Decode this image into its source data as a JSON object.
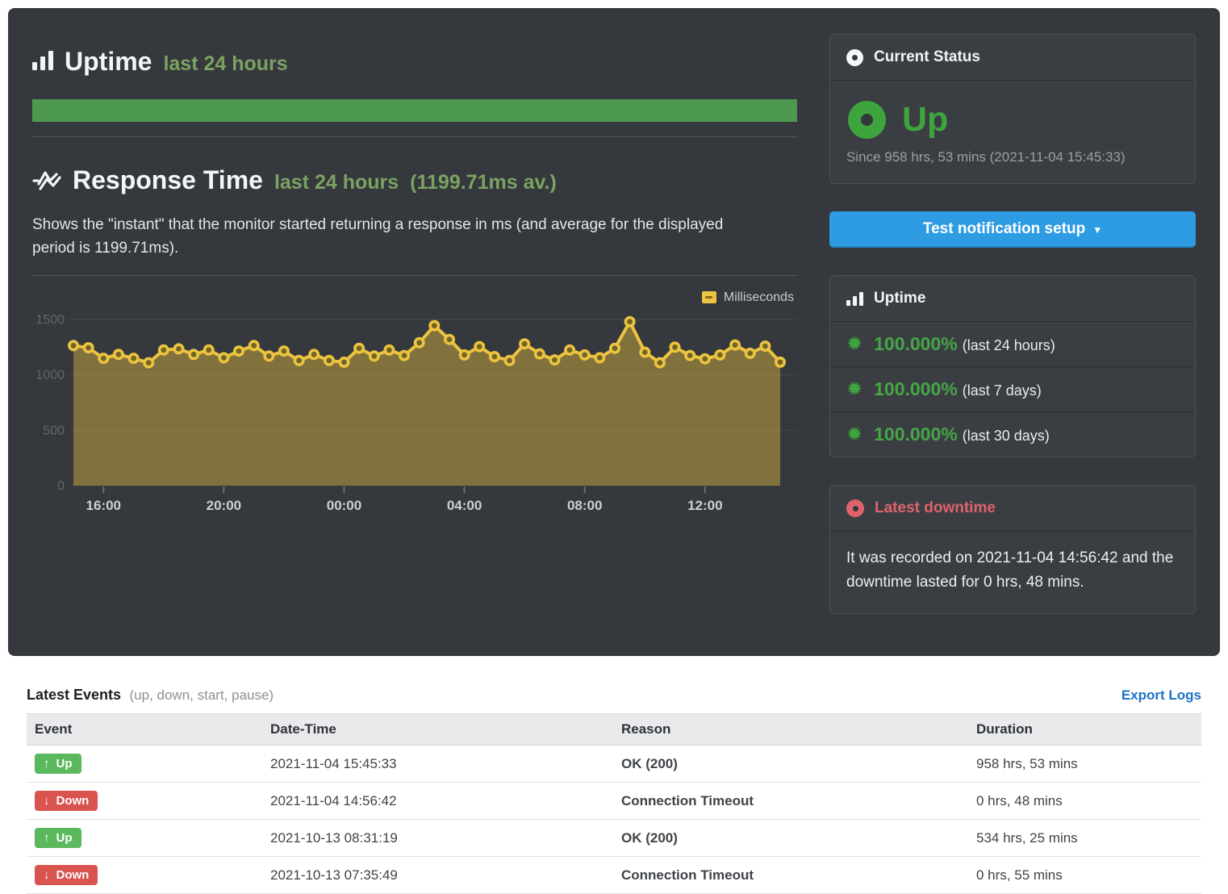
{
  "uptime_section": {
    "title": "Uptime",
    "subtitle": "last 24 hours"
  },
  "response_section": {
    "title": "Response Time",
    "subtitle": "last 24 hours",
    "average_note": "(1199.71ms av.)",
    "description": "Shows the \"instant\" that the monitor started returning a response in ms (and average for the displayed period is 1199.71ms)."
  },
  "chart_data": {
    "type": "area",
    "title": "Response Time last 24 hours",
    "ylabel": "Milliseconds",
    "xlabel": "",
    "ylim": [
      0,
      1500
    ],
    "yticks": [
      0,
      500,
      1000,
      1500
    ],
    "xticks": [
      "16:00",
      "20:00",
      "00:00",
      "04:00",
      "08:00",
      "12:00"
    ],
    "xtick_indices": [
      2,
      10,
      18,
      26,
      34,
      42
    ],
    "grid": true,
    "legend_position": "top-right",
    "x": [
      "15:00",
      "15:30",
      "16:00",
      "16:30",
      "17:00",
      "17:30",
      "18:00",
      "18:30",
      "19:00",
      "19:30",
      "20:00",
      "20:30",
      "21:00",
      "21:30",
      "22:00",
      "22:30",
      "23:00",
      "23:30",
      "00:00",
      "00:30",
      "01:00",
      "01:30",
      "02:00",
      "02:30",
      "03:00",
      "03:30",
      "04:00",
      "04:30",
      "05:00",
      "05:30",
      "06:00",
      "06:30",
      "07:00",
      "07:30",
      "08:00",
      "08:30",
      "09:00",
      "09:30",
      "10:00",
      "10:30",
      "11:00",
      "11:30",
      "12:00",
      "12:30",
      "13:00",
      "13:30",
      "14:00",
      "14:30"
    ],
    "series": [
      {
        "name": "Milliseconds",
        "color": "#ecc440",
        "marker_fill": "#6f6527",
        "values": [
          1265,
          1245,
          1150,
          1185,
          1150,
          1110,
          1225,
          1235,
          1185,
          1225,
          1155,
          1215,
          1265,
          1170,
          1215,
          1130,
          1185,
          1130,
          1115,
          1240,
          1170,
          1225,
          1175,
          1290,
          1445,
          1320,
          1180,
          1255,
          1165,
          1130,
          1280,
          1190,
          1135,
          1225,
          1180,
          1155,
          1240,
          1480,
          1205,
          1110,
          1250,
          1175,
          1145,
          1180,
          1270,
          1195,
          1260,
          1115
        ]
      }
    ]
  },
  "sidebar": {
    "current_status": {
      "title": "Current Status",
      "status": "Up",
      "since": "Since 958 hrs, 53 mins (2021-11-04 15:45:33)"
    },
    "test_notification_button": "Test notification setup",
    "uptime_panel": {
      "title": "Uptime",
      "rows": [
        {
          "value": "100.000%",
          "period": "(last 24 hours)"
        },
        {
          "value": "100.000%",
          "period": "(last 7 days)"
        },
        {
          "value": "100.000%",
          "period": "(last 30 days)"
        }
      ]
    },
    "latest_downtime": {
      "title": "Latest downtime",
      "text": "It was recorded on 2021-11-04 14:56:42 and the downtime lasted for 0 hrs, 48 mins."
    }
  },
  "events": {
    "title": "Latest Events",
    "subtitle": "(up, down, start, pause)",
    "export_label": "Export Logs",
    "columns": [
      "Event",
      "Date-Time",
      "Reason",
      "Duration"
    ],
    "rows": [
      {
        "event": "Up",
        "direction": "up",
        "datetime": "2021-11-04 15:45:33",
        "reason": "OK (200)",
        "reason_type": "ok",
        "duration": "958 hrs, 53 mins"
      },
      {
        "event": "Down",
        "direction": "down",
        "datetime": "2021-11-04 14:56:42",
        "reason": "Connection Timeout",
        "reason_type": "error",
        "duration": "0 hrs, 48 mins"
      },
      {
        "event": "Up",
        "direction": "up",
        "datetime": "2021-10-13 08:31:19",
        "reason": "OK (200)",
        "reason_type": "ok",
        "duration": "534 hrs, 25 mins"
      },
      {
        "event": "Down",
        "direction": "down",
        "datetime": "2021-10-13 07:35:49",
        "reason": "Connection Timeout",
        "reason_type": "error",
        "duration": "0 hrs, 55 mins"
      }
    ]
  },
  "colors": {
    "uptime_bar_green": "#4d9950",
    "status_green": "#3ea43e",
    "percent_green": "#46a546",
    "subtitle_green": "#7ba263",
    "button_blue": "#2e9ce3",
    "link_blue": "#1a71c7",
    "badge_green": "#5cb85c",
    "badge_red": "#d9534f",
    "downtime_red": "#e0636c",
    "chart_gold": "#ecc440",
    "panel_background": "#35383c"
  }
}
